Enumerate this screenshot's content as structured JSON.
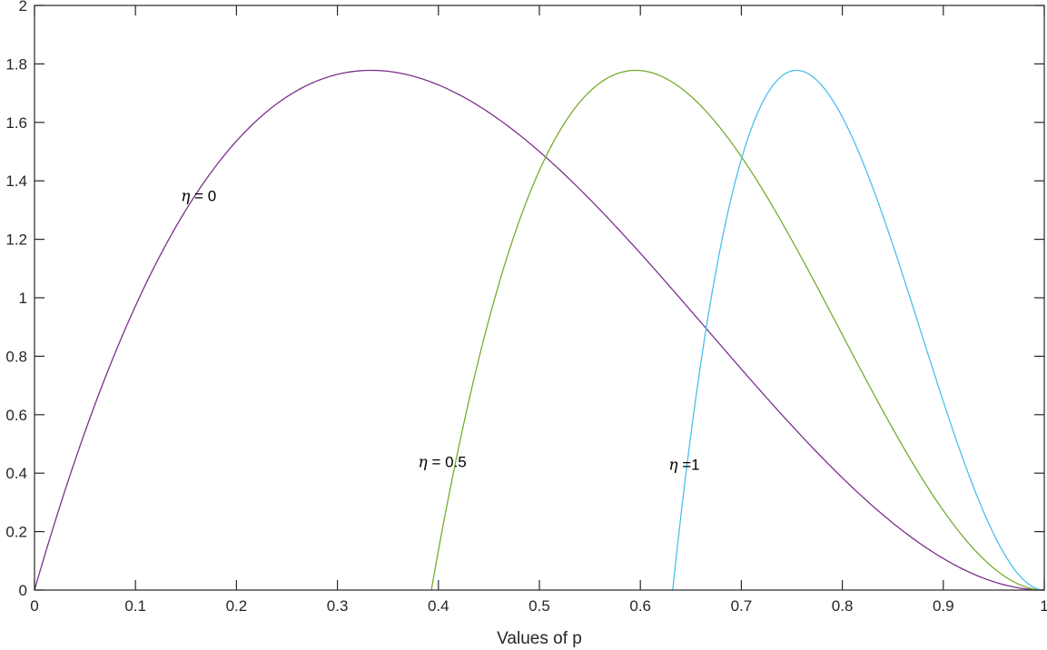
{
  "chart_data": {
    "type": "line",
    "title": "",
    "xlabel": "Values of p",
    "ylabel": "",
    "xlim": [
      0,
      1
    ],
    "ylim": [
      0,
      2
    ],
    "grid": false,
    "legend": null,
    "xticks": [
      "0",
      "0.1",
      "0.2",
      "0.3",
      "0.4",
      "0.5",
      "0.6",
      "0.7",
      "0.8",
      "0.9",
      "1"
    ],
    "yticks": [
      "0",
      "0.2",
      "0.4",
      "0.6",
      "0.8",
      "1",
      "1.2",
      "1.4",
      "1.6",
      "1.8",
      "2"
    ],
    "series": [
      {
        "name": "η = 0",
        "color": "#7E2F8E",
        "zero_start": 0.0,
        "peak_x": 0.333,
        "peak_y": 1.778,
        "x": [
          0,
          0.1,
          0.2,
          0.3,
          0.333,
          0.4,
          0.5,
          0.6,
          0.7,
          0.8,
          0.9,
          1.0
        ],
        "y": [
          0,
          0.97,
          1.54,
          1.76,
          1.778,
          1.73,
          1.5,
          1.15,
          0.76,
          0.38,
          0.11,
          0
        ]
      },
      {
        "name": "η = 0.5",
        "color": "#77AC30",
        "zero_start": 0.393,
        "peak_x": 0.595,
        "peak_y": 1.778,
        "x": [
          0.393,
          0.45,
          0.5,
          0.55,
          0.595,
          0.65,
          0.7,
          0.8,
          0.9,
          1.0
        ],
        "y": [
          0,
          0.84,
          1.4,
          1.7,
          1.778,
          1.68,
          1.45,
          0.8,
          0.24,
          0
        ]
      },
      {
        "name": "η = 1",
        "color": "#4DBEEE",
        "zero_start": 0.632,
        "peak_x": 0.755,
        "peak_y": 1.778,
        "x": [
          0.632,
          0.67,
          0.7,
          0.755,
          0.8,
          0.85,
          0.9,
          0.95,
          1.0
        ],
        "y": [
          0,
          0.95,
          1.45,
          1.778,
          1.65,
          1.22,
          0.64,
          0.18,
          0
        ]
      }
    ],
    "annotations": [
      {
        "text_symbol": "η",
        "text_rest": " = 0",
        "x": 0.145,
        "y": 1.35
      },
      {
        "text_symbol": "η",
        "text_rest": " = 0.5",
        "x": 0.38,
        "y": 0.44
      },
      {
        "text_symbol": "η",
        "text_rest": " =1",
        "x": 0.628,
        "y": 0.43
      }
    ]
  }
}
